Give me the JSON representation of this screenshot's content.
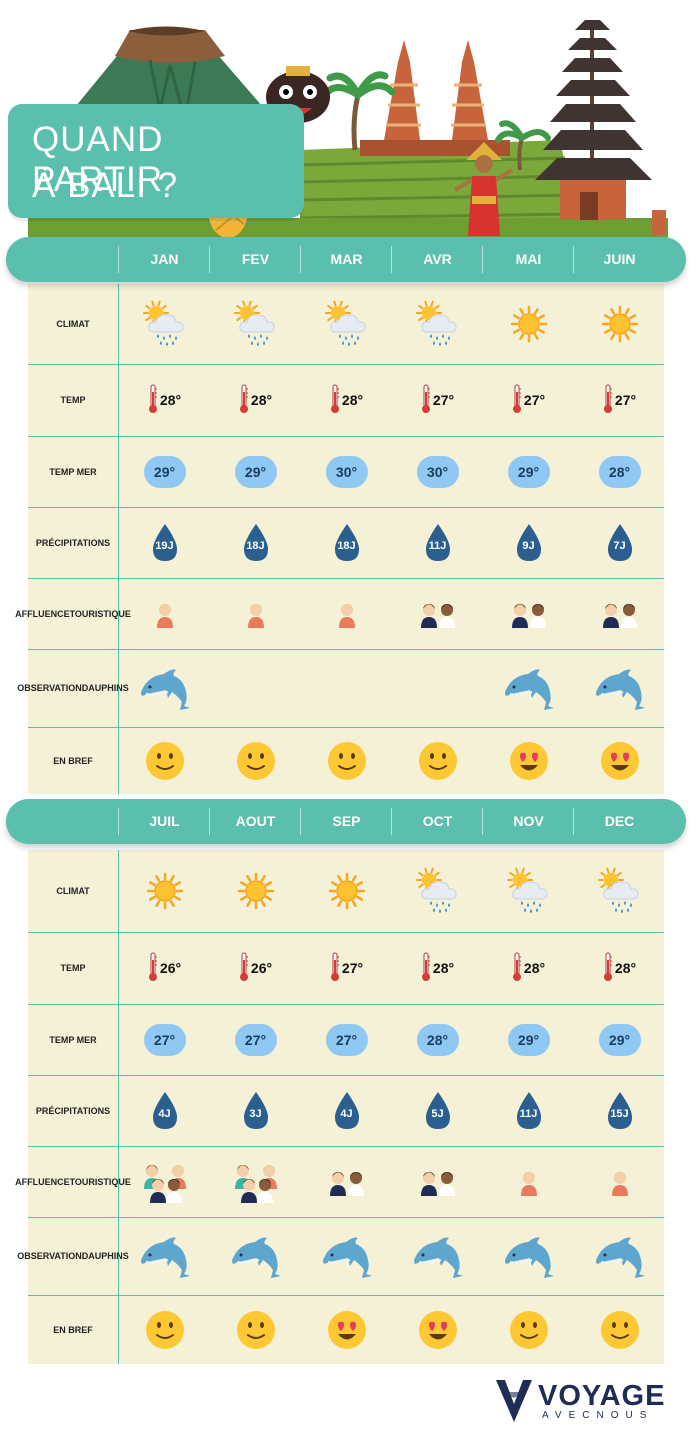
{
  "title": {
    "line1": "QUAND PARTIR",
    "line2": "À BALI ?"
  },
  "colors": {
    "teal": "#5bbfad",
    "cell_bg": "#f4f1d6",
    "sea_bubble": "#8ec8f3",
    "drop": "#2a5f8f",
    "logo": "#1f2d54"
  },
  "row_labels": {
    "climat": "CLIMAT",
    "temp": "TEMP",
    "temp_mer": "TEMP MER",
    "precipitations": "PRÉCIPITATIONS",
    "affluence": [
      "AFFLUENCE",
      "TOURISTIQUE"
    ],
    "dauphins": [
      "OBSERVATION",
      "DAUPHINS"
    ],
    "en_bref": "EN BREF"
  },
  "sections": [
    {
      "months": [
        "JAN",
        "FEV",
        "MAR",
        "AVR",
        "MAI",
        "JUIN"
      ],
      "climat": [
        "sun-cloud-rain-icon",
        "sun-cloud-rain-icon",
        "sun-cloud-rain-icon",
        "sun-cloud-rain-icon",
        "sun-icon",
        "sun-icon"
      ],
      "temp": [
        "28°",
        "28°",
        "28°",
        "27°",
        "27°",
        "27°"
      ],
      "temp_mer": [
        "29°",
        "29°",
        "30°",
        "30°",
        "29°",
        "28°"
      ],
      "precipitations": [
        "19J",
        "18J",
        "18J",
        "11J",
        "9J",
        "7J"
      ],
      "affluence": [
        1,
        1,
        1,
        2,
        2,
        2
      ],
      "dauphins": [
        true,
        false,
        false,
        false,
        true,
        true
      ],
      "en_bref": [
        "smile",
        "smile",
        "smile",
        "smile",
        "heart-eyes",
        "heart-eyes"
      ]
    },
    {
      "months": [
        "JUIL",
        "AOUT",
        "SEP",
        "OCT",
        "NOV",
        "DEC"
      ],
      "climat": [
        "sun-icon",
        "sun-icon",
        "sun-icon",
        "sun-cloud-rain-icon",
        "sun-cloud-rain-icon",
        "sun-cloud-rain-icon"
      ],
      "temp": [
        "26°",
        "26°",
        "27°",
        "28°",
        "28°",
        "28°"
      ],
      "temp_mer": [
        "27°",
        "27°",
        "27°",
        "28°",
        "29°",
        "29°"
      ],
      "precipitations": [
        "4J",
        "3J",
        "4J",
        "5J",
        "11J",
        "15J"
      ],
      "affluence": [
        3,
        3,
        2,
        2,
        1,
        1
      ],
      "dauphins": [
        true,
        true,
        true,
        true,
        true,
        true
      ],
      "en_bref": [
        "smile",
        "smile",
        "heart-eyes",
        "heart-eyes",
        "smile",
        "smile"
      ]
    }
  ],
  "logo": {
    "main": "VOYAGE",
    "sub": "AVECNOUS"
  }
}
